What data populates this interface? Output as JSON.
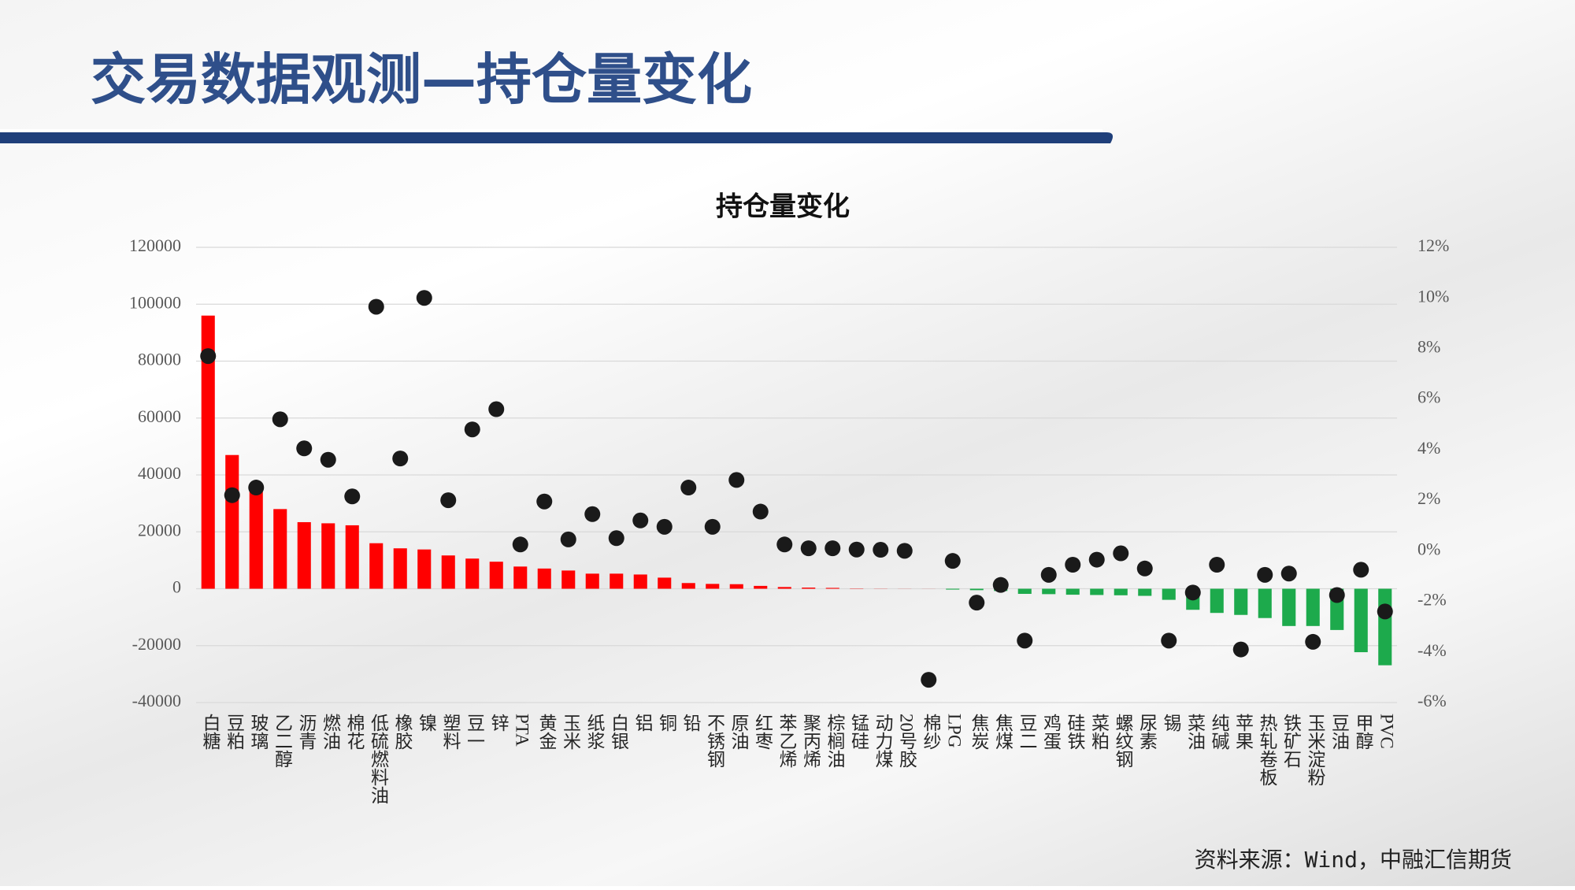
{
  "header": {
    "title": "交易数据观测—持仓量变化"
  },
  "chart_data": {
    "type": "bar",
    "title": "持仓量变化",
    "categories": [
      "白糖",
      "豆粕",
      "玻璃",
      "乙二醇",
      "沥青",
      "燃油",
      "棉花",
      "低硫燃料油",
      "橡胶",
      "镍",
      "塑料",
      "豆一",
      "锌",
      "PTA",
      "黄金",
      "玉米",
      "纸浆",
      "白银",
      "铝",
      "铜",
      "铅",
      "不锈钢",
      "原油",
      "红枣",
      "苯乙烯",
      "聚丙烯",
      "棕榈油",
      "锰硅",
      "动力煤",
      "20号胶",
      "棉纱",
      "LPG",
      "焦炭",
      "焦煤",
      "豆二",
      "鸡蛋",
      "硅铁",
      "菜粕",
      "螺纹钢",
      "尿素",
      "锡",
      "菜油",
      "纯碱",
      "苹果",
      "热轧卷板",
      "铁矿石",
      "玉米淀粉",
      "豆油",
      "甲醇",
      "PVC"
    ],
    "series": [
      {
        "type": "bar",
        "color": "#ff0000",
        "negative_color": "#1daa4c",
        "values": [
          96000,
          47000,
          36000,
          28000,
          23400,
          23000,
          22300,
          16000,
          14200,
          13800,
          11700,
          10600,
          9500,
          7800,
          7100,
          6400,
          5300,
          5300,
          5000,
          3900,
          2000,
          1700,
          1600,
          1000,
          600,
          400,
          300,
          100,
          50,
          30,
          20,
          -300,
          -500,
          -800,
          -1800,
          -1900,
          -2100,
          -2200,
          -2300,
          -2500,
          -3900,
          -7400,
          -8500,
          -9200,
          -10300,
          -13100,
          -13100,
          -14500,
          -22300,
          -26900
        ]
      },
      {
        "type": "scatter",
        "axis": "y2",
        "color": "#1a1a1a",
        "values": [
          7.7,
          2.2,
          2.5,
          5.2,
          4.05,
          3.6,
          2.15,
          9.65,
          3.65,
          10.0,
          2.0,
          4.8,
          5.6,
          0.25,
          1.95,
          0.45,
          1.45,
          0.5,
          1.2,
          0.95,
          2.5,
          0.95,
          2.8,
          1.55,
          0.25,
          0.1,
          0.1,
          0.05,
          0.04,
          0.0,
          -5.1,
          -0.4,
          -2.05,
          -1.35,
          -3.55,
          -0.95,
          -0.55,
          -0.35,
          -0.1,
          -0.7,
          -3.55,
          -1.65,
          -0.55,
          -3.9,
          -0.95,
          -0.9,
          -3.6,
          -1.75,
          -0.75,
          -2.4
        ]
      }
    ],
    "ylim": [
      -40000,
      120000
    ],
    "yticks": [
      -40000,
      -20000,
      0,
      20000,
      40000,
      60000,
      80000,
      100000,
      120000
    ],
    "y2lim": [
      -6,
      12
    ],
    "y2ticks": [
      {
        "value": -6,
        "label": "-6%"
      },
      {
        "value": -4,
        "label": "-4%"
      },
      {
        "value": -2,
        "label": "-2%"
      },
      {
        "value": 0,
        "label": "0%"
      },
      {
        "value": 2,
        "label": "2%"
      },
      {
        "value": 4,
        "label": "4%"
      },
      {
        "value": 6,
        "label": "6%"
      },
      {
        "value": 8,
        "label": "8%"
      },
      {
        "value": 10,
        "label": "10%"
      },
      {
        "value": 12,
        "label": "12%"
      }
    ],
    "grid": true
  },
  "footer": {
    "source": "资料来源：Wind，中融汇信期货"
  }
}
